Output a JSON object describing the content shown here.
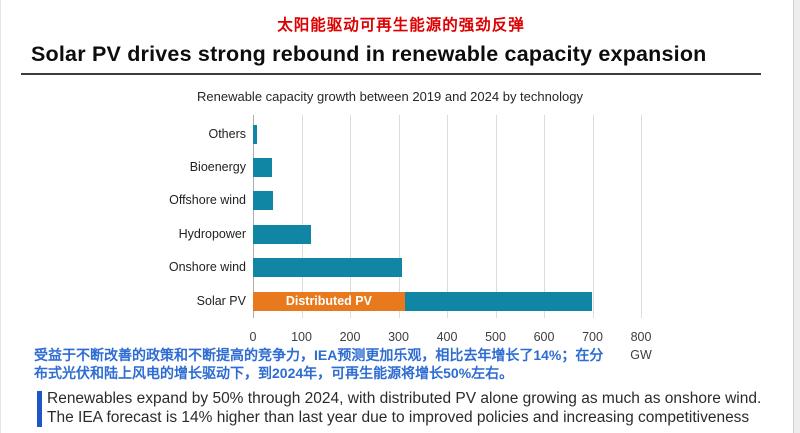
{
  "header": {
    "cn_title": "太阳能驱动可再生能源的强劲反弹",
    "en_title": "Solar PV drives strong rebound in renewable capacity expansion"
  },
  "chart_data": {
    "type": "bar",
    "orientation": "horizontal",
    "title": "Renewable capacity growth between 2019 and 2024 by technology",
    "unit": "GW",
    "xlim": [
      0,
      800
    ],
    "x_ticks": [
      0,
      100,
      200,
      300,
      400,
      500,
      600,
      700,
      800
    ],
    "grid": true,
    "legend_position": "none",
    "categories": [
      "Others",
      "Bioenergy",
      "Offshore wind",
      "Hydropower",
      "Onshore wind",
      "Solar PV"
    ],
    "values": [
      8,
      40,
      42,
      120,
      308,
      698
    ],
    "solar_pv_breakdown": {
      "segment_label": "Distributed PV",
      "distributed_pv": 313,
      "remainder": 385
    },
    "colors": {
      "bar": "#1186a4",
      "distributed": "#e8791d"
    }
  },
  "notes": {
    "cn_note_lines": [
      "受益于不断改善的政策和不断提高的竞争力，IEA预测更加乐观，相比去年增长了14%；在分",
      "布式光伏和陆上风电的增长驱动下，到2024年，可再生能源将增长50%左右。"
    ],
    "en_note_lines": [
      "Renewables expand by 50% through 2024, with distributed PV alone growing as much as onshore wind.",
      "The IEA forecast is 14% higher than last year due to improved policies and increasing competitiveness"
    ]
  },
  "colors": {
    "red_title": "#dc0000",
    "blue_note_text": "#2d6cd2",
    "blue_accent_bar": "#1e56c8"
  }
}
